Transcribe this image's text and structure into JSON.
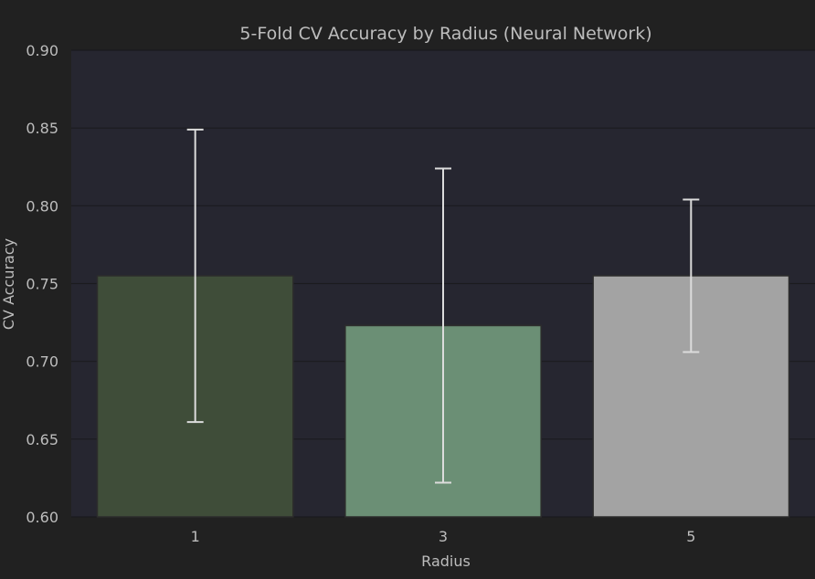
{
  "chart_data": {
    "type": "bar",
    "title": "5-Fold CV Accuracy by Radius (Neural Network)",
    "xlabel": "Radius",
    "ylabel": "CV Accuracy",
    "categories": [
      "1",
      "3",
      "5"
    ],
    "values": [
      0.755,
      0.723,
      0.755
    ],
    "error": [
      0.094,
      0.101,
      0.049
    ],
    "ylim": [
      0.6,
      0.9
    ],
    "yticks": [
      "0.60",
      "0.65",
      "0.70",
      "0.75",
      "0.80",
      "0.85",
      "0.90"
    ],
    "grid": true,
    "colors": {
      "background": "#212121",
      "plot_area": "#262630",
      "grid": "#1b1b1f",
      "text": "#bdbdbd",
      "error_bar": "#dcdcdc",
      "bars": [
        "#3f4d39",
        "#6b8f75",
        "#a3a3a3"
      ],
      "bar_edge": "#2c2c2c"
    }
  }
}
